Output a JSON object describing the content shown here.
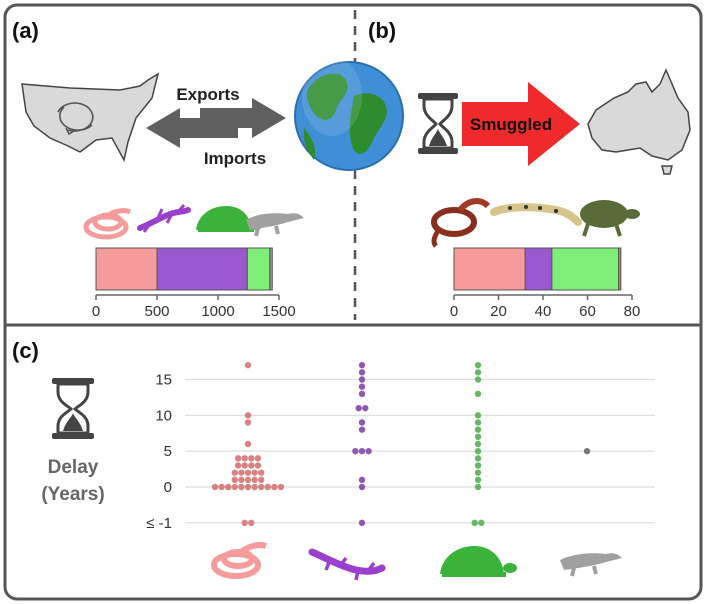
{
  "panels": {
    "a": "(a)",
    "b": "(b)",
    "c": "(c)"
  },
  "labels": {
    "exports": "Exports",
    "imports": "Imports",
    "smuggled": "Smuggled",
    "delay_line1": "Delay",
    "delay_line2": "(Years)"
  },
  "icons": {
    "usa": "usa-map-icon",
    "globe": "globe-icon",
    "hourglass": "hourglass-icon",
    "australia": "australia-map-icon",
    "snake": "snake-icon",
    "lizard": "lizard-icon",
    "turtle": "turtle-icon",
    "crocodile": "crocodile-icon"
  },
  "colors": {
    "snake": "#f59b9b",
    "lizard": "#9b59d0",
    "turtle": "#7ef07a",
    "crocodile": "#999999",
    "smuggled_arrow": "#f02a2a",
    "dot_snake": "#d98282",
    "dot_lizard": "#8e5ab0",
    "dot_turtle": "#66b865",
    "dot_croc": "#777777"
  },
  "chart_data": [
    {
      "type": "bar",
      "orientation": "horizontal-stacked",
      "title": "",
      "series": [
        {
          "value": 500
        },
        {
          "value": 740
        },
        {
          "value": 185
        },
        {
          "value": 20
        }
      ],
      "xlim": [
        0,
        1500
      ],
      "xticks": [
        "0",
        "500",
        "1000",
        "1500"
      ]
    },
    {
      "type": "bar",
      "orientation": "horizontal-stacked",
      "title": "",
      "series": [
        {
          "value": 32
        },
        {
          "value": 12
        },
        {
          "value": 30
        },
        {
          "value": 1
        }
      ],
      "xlim": [
        0,
        80
      ],
      "xticks": [
        "0",
        "20",
        "40",
        "60",
        "80"
      ]
    },
    {
      "type": "scatter",
      "ylabel": "Delay (Years)",
      "yticks": [
        "15",
        "10",
        "5",
        "0",
        "≤ -1"
      ],
      "ytick_values": [
        15,
        10,
        5,
        0,
        -5
      ],
      "ylim": [
        -6,
        18
      ],
      "grid": true,
      "series": [
        {
          "values": [
            17,
            10,
            9,
            6,
            4,
            4,
            4,
            4,
            3,
            3,
            3,
            3,
            2,
            2,
            2,
            2,
            2,
            1,
            1,
            1,
            1,
            1,
            0,
            0,
            0,
            0,
            0,
            0,
            0,
            0,
            0,
            0,
            0,
            -5,
            -5
          ]
        },
        {
          "values": [
            17,
            16,
            15,
            14,
            13,
            11,
            11,
            9,
            8,
            5,
            5,
            5,
            1,
            0,
            -5
          ]
        },
        {
          "values": [
            17,
            16,
            15,
            13,
            10,
            9,
            8,
            7,
            6,
            5,
            4,
            3,
            2,
            1,
            0,
            -5,
            -5
          ]
        },
        {
          "values": [
            5
          ]
        }
      ]
    }
  ]
}
